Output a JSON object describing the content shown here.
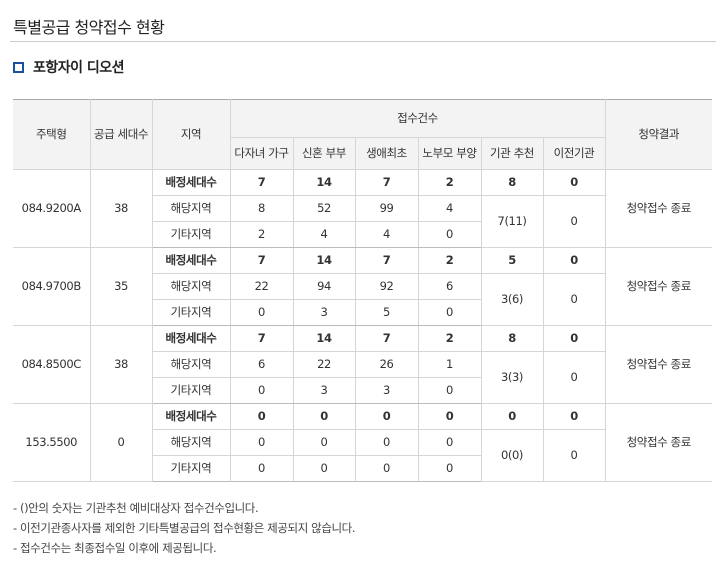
{
  "page_title": "특별공급 청약접수 현황",
  "complex_name": "포항자이 디오션",
  "table": {
    "headers": {
      "housing_type": "주택형",
      "supply_units": "공급 세대수",
      "region": "지역",
      "received_group": "접수건수",
      "categories": [
        "다자녀 가구",
        "신혼 부부",
        "생애최초",
        "노부모 부양",
        "기관 추천",
        "이전기관"
      ],
      "result": "청약결과"
    },
    "groups": [
      {
        "type": "084.9200A",
        "units": "38",
        "result": "청약접수 종료",
        "rows": [
          {
            "region": "배정세대수",
            "values": [
              "7",
              "14",
              "7",
              "2"
            ],
            "agency": "8",
            "transfer": "0"
          },
          {
            "region": "해당지역",
            "values": [
              "8",
              "52",
              "99",
              "4"
            ]
          },
          {
            "region": "기타지역",
            "values": [
              "2",
              "4",
              "4",
              "0"
            ]
          }
        ],
        "agency_received": "7(11)",
        "transfer_received": "0"
      },
      {
        "type": "084.9700B",
        "units": "35",
        "result": "청약접수 종료",
        "rows": [
          {
            "region": "배정세대수",
            "values": [
              "7",
              "14",
              "7",
              "2"
            ],
            "agency": "5",
            "transfer": "0"
          },
          {
            "region": "해당지역",
            "values": [
              "22",
              "94",
              "92",
              "6"
            ]
          },
          {
            "region": "기타지역",
            "values": [
              "0",
              "3",
              "5",
              "0"
            ]
          }
        ],
        "agency_received": "3(6)",
        "transfer_received": "0"
      },
      {
        "type": "084.8500C",
        "units": "38",
        "result": "청약접수 종료",
        "rows": [
          {
            "region": "배정세대수",
            "values": [
              "7",
              "14",
              "7",
              "2"
            ],
            "agency": "8",
            "transfer": "0"
          },
          {
            "region": "해당지역",
            "values": [
              "6",
              "22",
              "26",
              "1"
            ]
          },
          {
            "region": "기타지역",
            "values": [
              "0",
              "3",
              "3",
              "0"
            ]
          }
        ],
        "agency_received": "3(3)",
        "transfer_received": "0"
      },
      {
        "type": "153.5500",
        "units": "0",
        "result": "청약접수 종료",
        "rows": [
          {
            "region": "배정세대수",
            "values": [
              "0",
              "0",
              "0",
              "0"
            ],
            "agency": "0",
            "transfer": "0"
          },
          {
            "region": "해당지역",
            "values": [
              "0",
              "0",
              "0",
              "0"
            ]
          },
          {
            "region": "기타지역",
            "values": [
              "0",
              "0",
              "0",
              "0"
            ]
          }
        ],
        "agency_received": "0(0)",
        "transfer_received": "0"
      }
    ]
  },
  "notes": [
    "-  ()안의 숫자는 기관추천 예비대상자 접수건수입니다.",
    "-  이전기관종사자를 제외한 기타특별공급의 접수현황은 제공되지 않습니다.",
    "-  접수건수는 최종접수일 이후에 제공됩니다."
  ]
}
